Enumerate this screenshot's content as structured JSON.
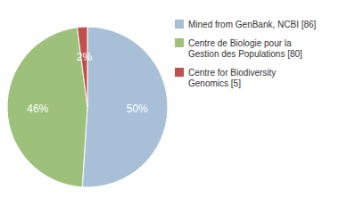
{
  "chart_data": {
    "type": "pie",
    "categories": [
      "Mined from GenBank, NCBI [86]",
      "Centre de Biologie pour la\nGestion des Populations [80]",
      "Centre for Biodiversity\nGenomics [5]"
    ],
    "values": [
      50,
      46,
      2
    ],
    "value_labels": [
      "50%",
      "46%",
      "2%"
    ],
    "colors": [
      "#a8bfd8",
      "#9dc07a",
      "#c0504d"
    ],
    "data_labels": true,
    "legend": "right"
  }
}
